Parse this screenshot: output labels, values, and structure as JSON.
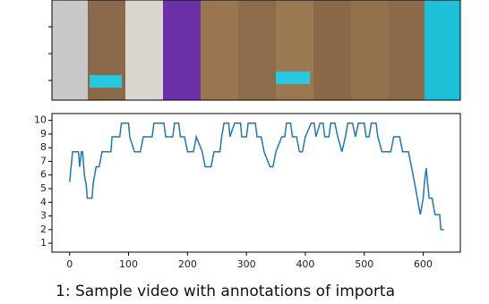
{
  "chart_data": {
    "type": "line",
    "x": [
      0,
      5,
      15,
      17,
      20,
      22,
      25,
      28,
      30,
      38,
      40,
      45,
      50,
      55,
      70,
      72,
      85,
      88,
      100,
      102,
      110,
      120,
      125,
      140,
      143,
      160,
      163,
      175,
      178,
      185,
      188,
      195,
      200,
      210,
      215,
      225,
      230,
      240,
      245,
      255,
      258,
      262,
      270,
      272,
      280,
      290,
      292,
      300,
      303,
      315,
      318,
      325,
      330,
      340,
      345,
      350,
      360,
      365,
      368,
      375,
      378,
      385,
      390,
      395,
      400,
      410,
      415,
      418,
      425,
      430,
      433,
      440,
      443,
      450,
      455,
      462,
      468,
      472,
      480,
      485,
      490,
      500,
      503,
      508,
      512,
      520,
      523,
      530,
      545,
      550,
      560,
      565,
      575,
      580,
      585,
      590,
      595,
      600,
      602,
      605,
      610,
      615,
      620,
      628,
      630,
      635
    ],
    "series": [
      {
        "color": "#1f77b4",
        "values": [
          5.5,
          7.7,
          7.7,
          6.6,
          7.7,
          7.7,
          6.0,
          5.3,
          4.3,
          4.3,
          5.4,
          6.6,
          6.6,
          7.7,
          7.7,
          8.8,
          8.8,
          9.8,
          9.8,
          8.8,
          7.7,
          7.7,
          8.8,
          8.8,
          9.8,
          9.8,
          8.8,
          8.8,
          9.8,
          9.8,
          8.8,
          8.8,
          7.7,
          7.7,
          8.8,
          7.7,
          6.6,
          6.6,
          7.7,
          7.7,
          8.8,
          9.8,
          9.8,
          8.8,
          9.8,
          9.8,
          8.8,
          8.8,
          9.8,
          9.8,
          8.8,
          8.8,
          7.7,
          6.6,
          6.6,
          7.7,
          8.8,
          8.8,
          9.8,
          9.8,
          8.8,
          8.8,
          7.7,
          7.7,
          8.8,
          9.8,
          9.8,
          8.8,
          9.8,
          9.8,
          8.8,
          8.8,
          9.8,
          9.8,
          8.8,
          7.7,
          8.8,
          9.8,
          9.8,
          8.8,
          9.8,
          9.8,
          8.8,
          8.8,
          9.8,
          9.8,
          8.8,
          7.7,
          7.7,
          8.8,
          8.8,
          7.7,
          7.7,
          6.6,
          5.5,
          4.3,
          3.1,
          4.3,
          5.4,
          6.5,
          4.3,
          4.3,
          3.1,
          3.1,
          2.0,
          2.0
        ]
      }
    ],
    "xlim": [
      -30,
      663
    ],
    "ylim": [
      0.35,
      10.5
    ],
    "xticks": [
      0,
      100,
      200,
      300,
      400,
      500,
      600
    ],
    "yticks": [
      1,
      2,
      3,
      4,
      5,
      6,
      7,
      8,
      9,
      10
    ],
    "caption": "1: Sample video with annotations of importa"
  }
}
